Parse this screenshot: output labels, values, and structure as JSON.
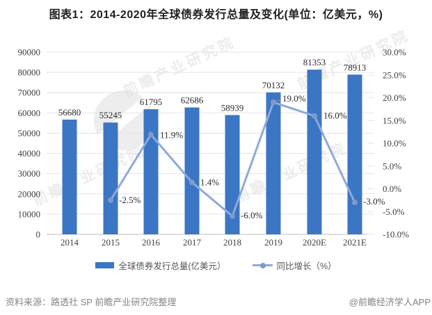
{
  "title": "图表1：2014-2020年全球债券发行总量及变化(单位：亿美元，%)",
  "watermark": {
    "brand": "前瞻产业研究院"
  },
  "legend": {
    "items": [
      {
        "label": "全球债券发行总量(亿美元）",
        "type": "bar"
      },
      {
        "label": "同比增长（%）",
        "type": "line"
      }
    ]
  },
  "footer": {
    "source": "资料来源：路透社 SP 前瞻产业研究院整理",
    "credit": "@前瞻经济学人APP"
  },
  "colors": {
    "bar": "#3B76C4",
    "line": "#8EA9DB",
    "marker": "#7E99CE",
    "grid": "#E4E4E4",
    "axis_line": "#BFBFBF",
    "data_label": "#2B2B2B",
    "axis_text": "#3F3F3F",
    "leader": "#999999"
  },
  "chart_data": {
    "type": "combo",
    "title": "图表1：2014-2020年全球债券发行总量及变化(单位：亿美元，%)",
    "categories": [
      "2014",
      "2015",
      "2016",
      "2017",
      "2018",
      "2019",
      "2020E",
      "2021E"
    ],
    "series": [
      {
        "name": "全球债券发行总量(亿美元）",
        "type": "bar",
        "axis": "left",
        "values": [
          56680,
          55245,
          61795,
          62686,
          58939,
          70132,
          81353,
          78913
        ],
        "value_labels": [
          "56680",
          "55245",
          "61795",
          "62686",
          "58939",
          "70132",
          "81353",
          "78913"
        ]
      },
      {
        "name": "同比增长（%）",
        "type": "line",
        "axis": "right",
        "values": [
          null,
          -2.5,
          11.9,
          1.4,
          -6.0,
          19.0,
          16.0,
          -3.0
        ],
        "value_labels": [
          null,
          "-2.5%",
          "11.9%",
          "1.4%",
          "-6.0%",
          "19.0%",
          "16.0%",
          "-3.0%"
        ],
        "label_offsets": [
          null,
          [
            12,
            0
          ],
          [
            13,
            1
          ],
          [
            12,
            0
          ],
          [
            12,
            -1
          ],
          [
            13,
            -5
          ],
          [
            13,
            0
          ],
          [
            12,
            -1
          ]
        ]
      }
    ],
    "left_axis": {
      "min": 0,
      "max": 90000,
      "step": 10000,
      "tick_labels": [
        "0",
        "10000",
        "20000",
        "30000",
        "40000",
        "50000",
        "60000",
        "70000",
        "80000",
        "90000"
      ]
    },
    "right_axis": {
      "min": -10,
      "max": 30,
      "step": 5,
      "tick_labels": [
        "-10.0%",
        "-5.0%",
        "0.0%",
        "5.0%",
        "10.0%",
        "15.0%",
        "20.0%",
        "25.0%",
        "30.0%"
      ]
    },
    "grid": true,
    "legend_position": "bottom"
  }
}
